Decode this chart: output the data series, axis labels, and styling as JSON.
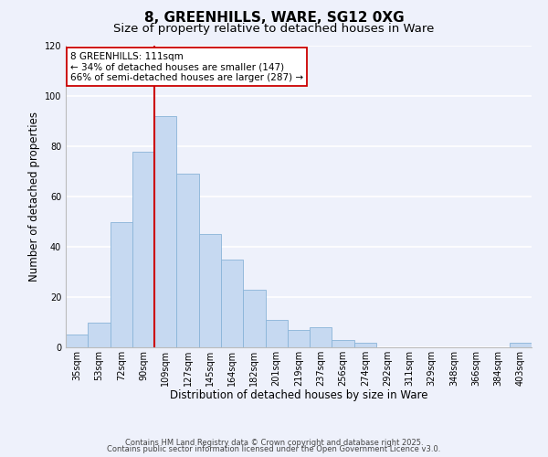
{
  "title": "8, GREENHILLS, WARE, SG12 0XG",
  "subtitle": "Size of property relative to detached houses in Ware",
  "xlabel": "Distribution of detached houses by size in Ware",
  "ylabel": "Number of detached properties",
  "bar_color": "#c6d9f1",
  "bar_edge_color": "#8ab4d8",
  "categories": [
    "35sqm",
    "53sqm",
    "72sqm",
    "90sqm",
    "109sqm",
    "127sqm",
    "145sqm",
    "164sqm",
    "182sqm",
    "201sqm",
    "219sqm",
    "237sqm",
    "256sqm",
    "274sqm",
    "292sqm",
    "311sqm",
    "329sqm",
    "348sqm",
    "366sqm",
    "384sqm",
    "403sqm"
  ],
  "values": [
    5,
    10,
    50,
    78,
    92,
    69,
    45,
    35,
    23,
    11,
    7,
    8,
    3,
    2,
    0,
    0,
    0,
    0,
    0,
    0,
    2
  ],
  "ylim": [
    0,
    120
  ],
  "yticks": [
    0,
    20,
    40,
    60,
    80,
    100,
    120
  ],
  "vline_index": 4,
  "vline_color": "#cc0000",
  "annotation_title": "8 GREENHILLS: 111sqm",
  "annotation_line1": "← 34% of detached houses are smaller (147)",
  "annotation_line2": "66% of semi-detached houses are larger (287) →",
  "annotation_box_color": "#ffffff",
  "annotation_box_edge": "#cc0000",
  "footer1": "Contains HM Land Registry data © Crown copyright and database right 2025.",
  "footer2": "Contains public sector information licensed under the Open Government Licence v3.0.",
  "background_color": "#eef1fb",
  "grid_color": "#ffffff",
  "title_fontsize": 11,
  "subtitle_fontsize": 9.5,
  "axis_label_fontsize": 8.5,
  "tick_fontsize": 7,
  "annotation_fontsize": 7.5,
  "footer_fontsize": 6
}
